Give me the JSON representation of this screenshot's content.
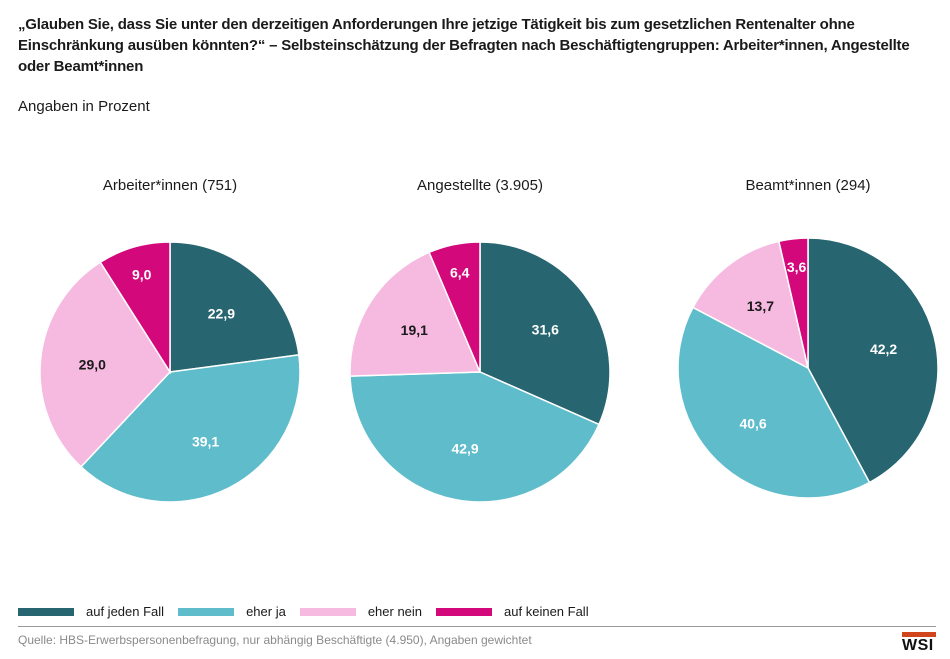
{
  "title": "„Glauben Sie, dass Sie unter den derzeitigen Anforderungen Ihre jetzige Tätigkeit bis zum gesetzlichen Rentenalter ohne Einschränkung ausüben könnten?“ – Selbsteinschätzung der Befragten nach Beschäftigtengruppen: Arbeiter*innen, Angestellte oder Beamt*innen",
  "subtitle": "Angaben in Prozent",
  "legend": [
    {
      "label": "auf jeden Fall",
      "color": "#276570"
    },
    {
      "label": "eher ja",
      "color": "#5fbccb"
    },
    {
      "label": "eher nein",
      "color": "#f6b9e0"
    },
    {
      "label": "auf keinen Fall",
      "color": "#d2087b"
    }
  ],
  "source": "Quelle: HBS-Erwerbspersonenbefragung, nur abhängig Beschäftigte (4.950), Angaben gewichtet",
  "logo_text": "WSI",
  "chart_data": [
    {
      "type": "pie",
      "title": "Arbeiter*innen (751)",
      "categories": [
        "auf jeden Fall",
        "eher ja",
        "eher nein",
        "auf keinen Fall"
      ],
      "values": [
        22.9,
        39.1,
        29.0,
        9.0
      ],
      "labels": [
        "22,9",
        "39,1",
        "29,0",
        "9,0"
      ]
    },
    {
      "type": "pie",
      "title": "Angestellte (3.905)",
      "categories": [
        "auf jeden Fall",
        "eher ja",
        "eher nein",
        "auf keinen Fall"
      ],
      "values": [
        31.6,
        42.9,
        19.1,
        6.4
      ],
      "labels": [
        "31,6",
        "42,9",
        "19,1",
        "6,4"
      ]
    },
    {
      "type": "pie",
      "title": "Beamt*innen (294)",
      "categories": [
        "auf jeden Fall",
        "eher ja",
        "eher nein",
        "auf keinen Fall"
      ],
      "values": [
        42.2,
        40.6,
        13.7,
        3.6
      ],
      "labels": [
        "42,2",
        "40,6",
        "13,7",
        "3,6"
      ]
    }
  ]
}
